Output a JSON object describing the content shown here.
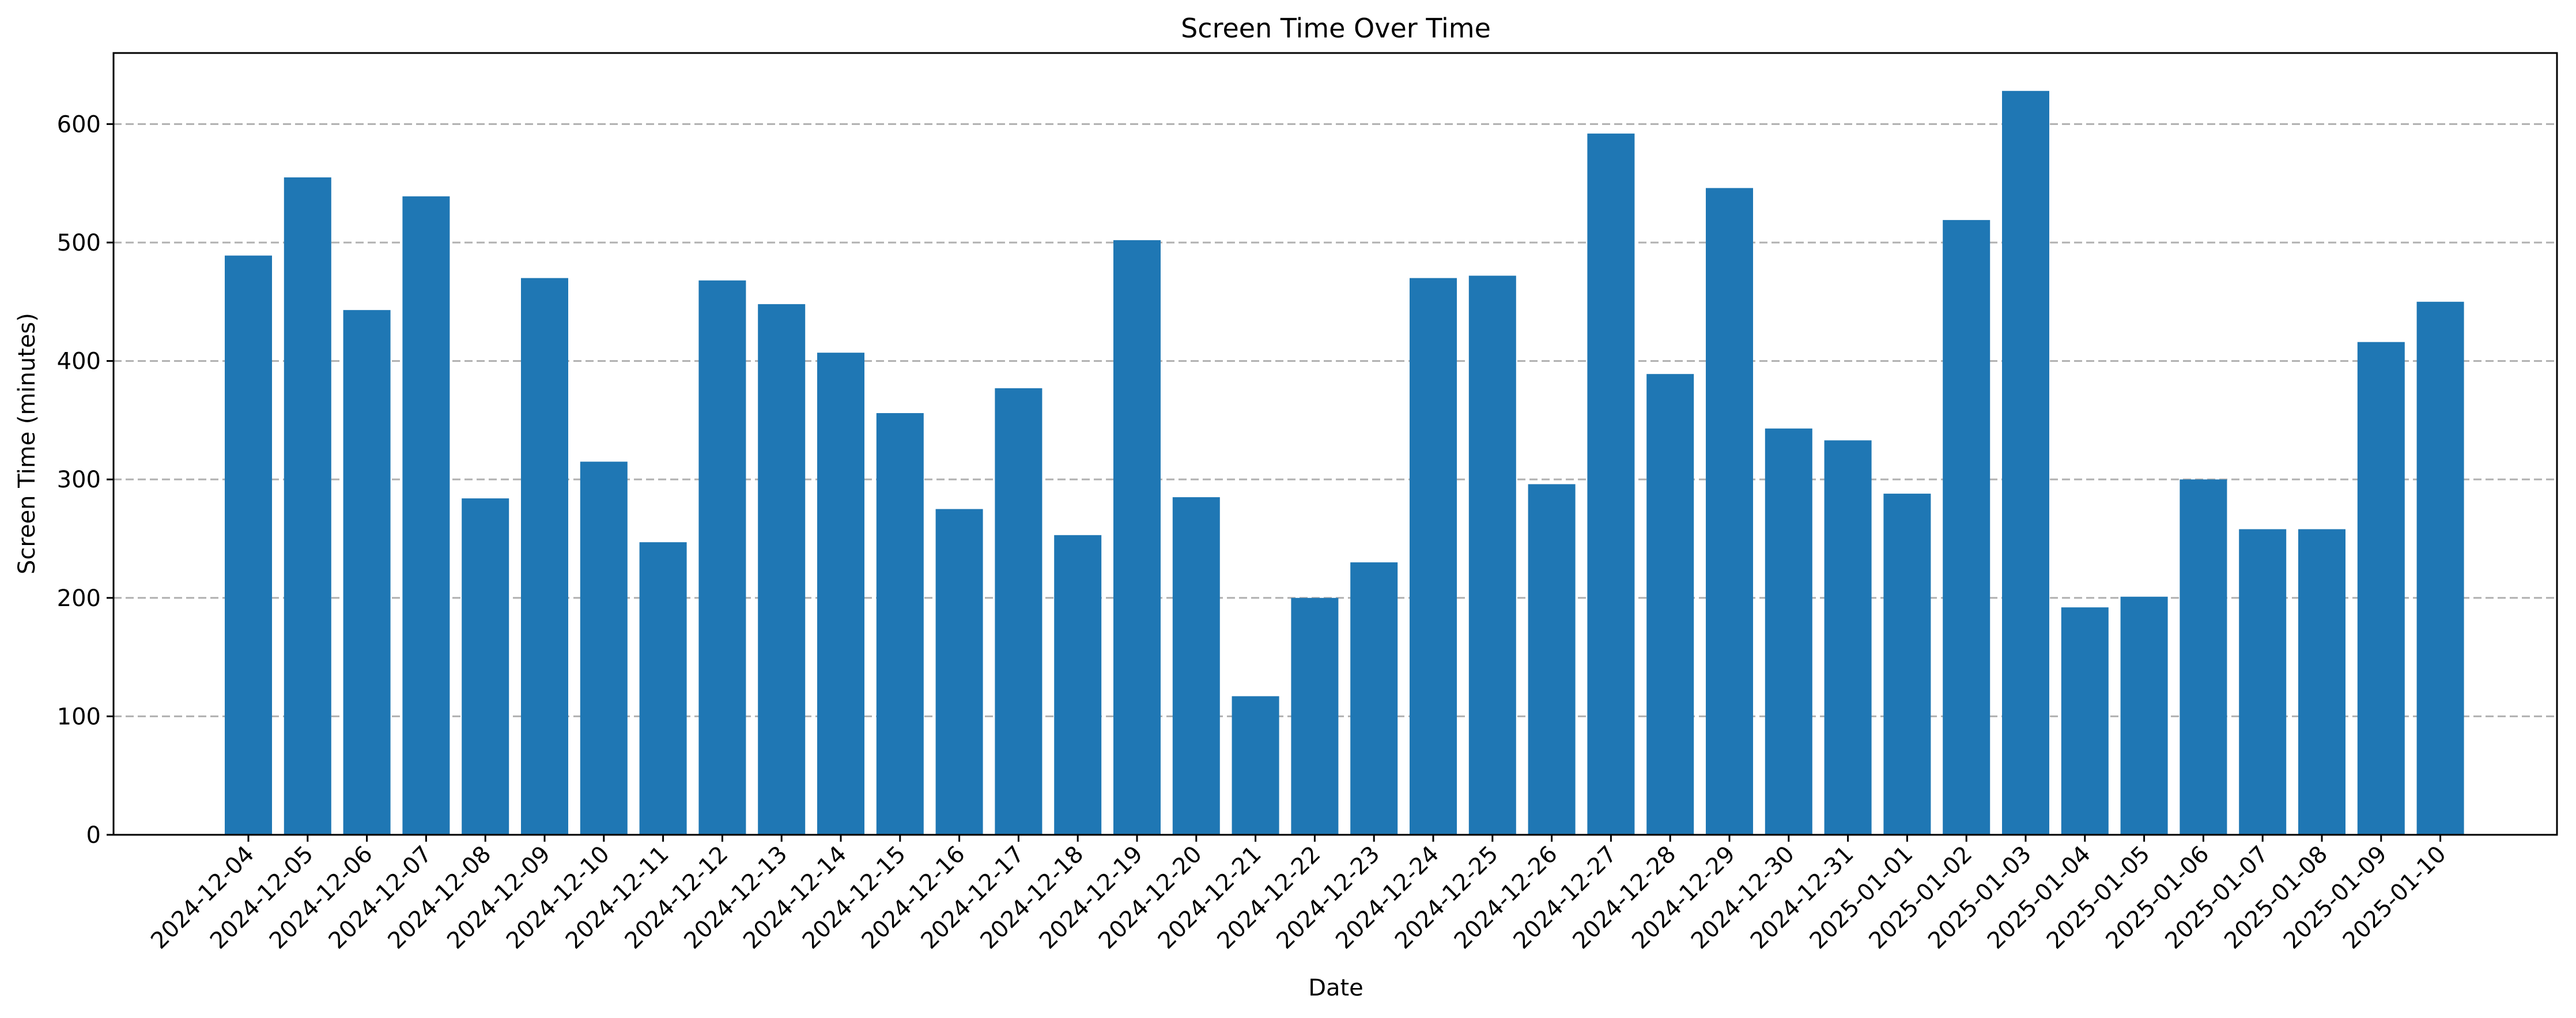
{
  "chart_data": {
    "type": "bar",
    "title": "Screen Time Over Time",
    "xlabel": "Date",
    "ylabel": "Screen Time (minutes)",
    "ylim": [
      0,
      660
    ],
    "yticks": [
      0,
      100,
      200,
      300,
      400,
      500,
      600
    ],
    "grid": "y-dashed",
    "bar_color": "#1f77b4",
    "categories": [
      "2024-12-04",
      "2024-12-05",
      "2024-12-06",
      "2024-12-07",
      "2024-12-08",
      "2024-12-09",
      "2024-12-10",
      "2024-12-11",
      "2024-12-12",
      "2024-12-13",
      "2024-12-14",
      "2024-12-15",
      "2024-12-16",
      "2024-12-17",
      "2024-12-18",
      "2024-12-19",
      "2024-12-20",
      "2024-12-21",
      "2024-12-22",
      "2024-12-23",
      "2024-12-24",
      "2024-12-25",
      "2024-12-26",
      "2024-12-27",
      "2024-12-28",
      "2024-12-29",
      "2024-12-30",
      "2024-12-31",
      "2025-01-01",
      "2025-01-02",
      "2025-01-03",
      "2025-01-04",
      "2025-01-05",
      "2025-01-06",
      "2025-01-07",
      "2025-01-08",
      "2025-01-09",
      "2025-01-10"
    ],
    "values": [
      489,
      555,
      443,
      539,
      284,
      470,
      315,
      247,
      468,
      448,
      407,
      356,
      275,
      377,
      253,
      502,
      285,
      117,
      200,
      230,
      470,
      472,
      296,
      592,
      389,
      546,
      343,
      333,
      288,
      519,
      628,
      192,
      201,
      300,
      258,
      258,
      416,
      450
    ]
  }
}
